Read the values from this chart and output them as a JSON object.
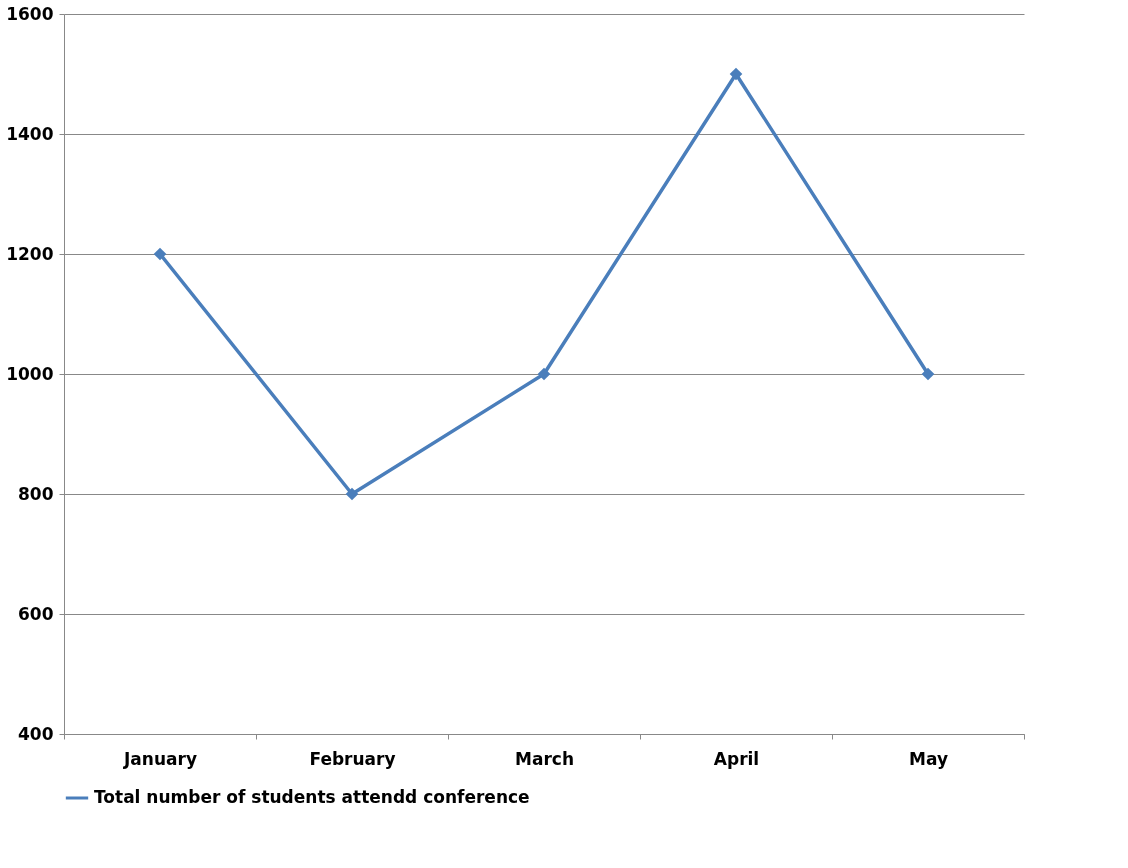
{
  "chart_data": {
    "type": "line",
    "categories": [
      "January",
      "February",
      "March",
      "April",
      "May"
    ],
    "series": [
      {
        "name": "Total number of students attendd conference",
        "color": "#4a7ebb",
        "values": [
          1200,
          800,
          1000,
          1500,
          1000
        ]
      }
    ],
    "ylim": [
      400,
      1600
    ],
    "yticks": [
      400,
      600,
      800,
      1000,
      1200,
      1400,
      1600
    ],
    "grid": "y",
    "legend": "bottom",
    "marker": "diamond",
    "line_style": "solid"
  }
}
